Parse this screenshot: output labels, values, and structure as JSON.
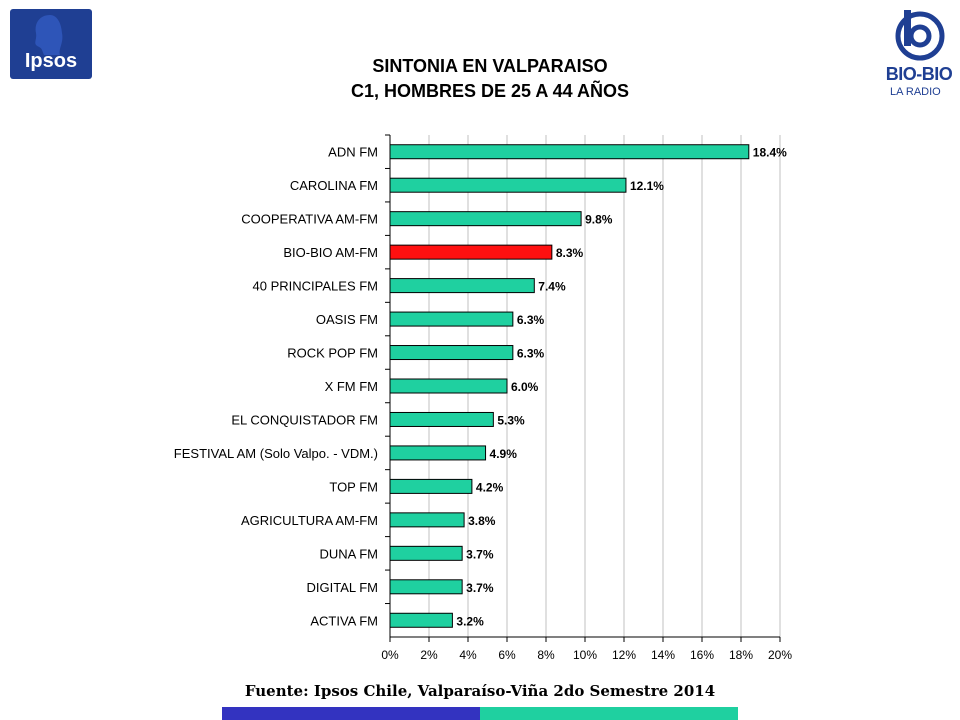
{
  "logos": {
    "left_text": "Ipsos",
    "right_name": "BIO-BIO",
    "right_sub": "LA RADIO"
  },
  "chart_data": {
    "type": "bar",
    "orientation": "horizontal",
    "title": "SINTONIA EN VALPARAISO",
    "subtitle": "C1, HOMBRES DE 25 A 44 AÑOS",
    "categories": [
      "ADN FM",
      "CAROLINA FM",
      "COOPERATIVA AM-FM",
      "BIO-BIO AM-FM",
      "40 PRINCIPALES FM",
      "OASIS FM",
      "ROCK   POP FM",
      "X FM FM",
      "EL CONQUISTADOR FM",
      "FESTIVAL AM  (Solo Valpo. - VDM.)",
      "TOP FM",
      "AGRICULTURA AM-FM",
      "DUNA FM",
      "DIGITAL FM",
      "ACTIVA  FM"
    ],
    "values": [
      18.4,
      12.1,
      9.8,
      8.3,
      7.4,
      6.3,
      6.3,
      6.0,
      5.3,
      4.9,
      4.2,
      3.8,
      3.7,
      3.7,
      3.2
    ],
    "value_labels": [
      "18.4%",
      "12.1%",
      "9.8%",
      "8.3%",
      "7.4%",
      "6.3%",
      "6.3%",
      "6.0%",
      "5.3%",
      "4.9%",
      "4.2%",
      "3.8%",
      "3.7%",
      "3.7%",
      "3.2%"
    ],
    "highlight_category": "BIO-BIO AM-FM",
    "xlim": [
      0,
      20
    ],
    "xticks": [
      "0%",
      "2%",
      "4%",
      "6%",
      "8%",
      "10%",
      "12%",
      "14%",
      "16%",
      "18%",
      "20%"
    ],
    "grid": "vertical",
    "legend": "none",
    "colors": {
      "bar": "#1fd0a0",
      "highlight": "#ff1010",
      "bar_edge": "#000000",
      "grid": "#c0c0c0"
    }
  },
  "source": "Fuente: Ipsos Chile, Valparaíso-Viña 2do Semestre 2014",
  "stripe_colors": [
    "#3333c0",
    "#1fd0a0"
  ]
}
